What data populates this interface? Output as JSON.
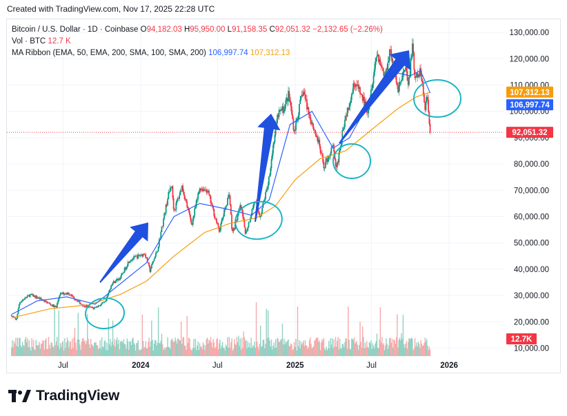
{
  "header": {
    "created_text": "Created with TradingView.com, Nov 17, 2025 22:28 UTC"
  },
  "legend": {
    "symbol": "Bitcoin / U.S. Dollar · 1D · Coinbase",
    "open_label": "O",
    "open": "94,182.03",
    "high_label": "H",
    "high": "95,950.00",
    "low_label": "L",
    "low": "91,158.35",
    "close_label": "C",
    "close": "92,051.32",
    "change": "−2,132.65 (−2.26%)",
    "vol_label": "Vol · BTC",
    "vol_value": "12.7 K",
    "ma_label": "MA Ribbon (EMA, 50, EMA, 200, SMA, 100, SMA, 200)",
    "ma1_value": "106,997.74",
    "ma2_value": "107,312.13"
  },
  "brand": {
    "name": "TradingView"
  },
  "colors": {
    "up": "#089981",
    "down": "#f23645",
    "ma_fast": "#2962ff",
    "ma_slow": "#f59d0b",
    "annotation": "#1f50e0",
    "circle": "#19b4c4",
    "grid": "#f0f3fa"
  },
  "chart_data": {
    "type": "candlestick",
    "title": "Bitcoin / U.S. Dollar · 1D · Coinbase",
    "x_ticks": [
      "Jul",
      "2024",
      "Jul",
      "2025",
      "Jul",
      "2026"
    ],
    "y_ticks": [
      "10,000.00",
      "20,000.00",
      "30,000.00",
      "40,000.00",
      "50,000.00",
      "60,000.00",
      "70,000.00",
      "80,000.00",
      "90,000.00",
      "100,000.00",
      "110,000.00",
      "120,000.00",
      "130,000.00"
    ],
    "ylim": [
      7000,
      135000
    ],
    "xlim": [
      "2023-02-18",
      "2026-05-10"
    ],
    "grid": true,
    "last_price": {
      "value": 92051.32,
      "label": "92,051.32"
    },
    "ma_fast": {
      "name": "EMA 50",
      "value": 106997.74,
      "label": "106,997.74"
    },
    "ma_slow": {
      "name": "EMA 200",
      "value": 107312.13,
      "label": "107,312.13"
    },
    "volume_last": {
      "label": "12.7K"
    },
    "price_path": [
      [
        "2023-03-01",
        22500
      ],
      [
        "2023-03-12",
        20500
      ],
      [
        "2023-03-20",
        27500
      ],
      [
        "2023-04-14",
        30300
      ],
      [
        "2023-05-05",
        29000
      ],
      [
        "2023-06-15",
        25500
      ],
      [
        "2023-06-23",
        30500
      ],
      [
        "2023-07-13",
        31000
      ],
      [
        "2023-08-18",
        26200
      ],
      [
        "2023-09-11",
        25200
      ],
      [
        "2023-10-10",
        27500
      ],
      [
        "2023-10-24",
        34500
      ],
      [
        "2023-11-15",
        37000
      ],
      [
        "2023-12-05",
        43500
      ],
      [
        "2024-01-11",
        46000
      ],
      [
        "2024-01-23",
        39500
      ],
      [
        "2024-02-10",
        47500
      ],
      [
        "2024-03-05",
        67000
      ],
      [
        "2024-03-14",
        72500
      ],
      [
        "2024-03-20",
        62000
      ],
      [
        "2024-04-08",
        71500
      ],
      [
        "2024-05-01",
        57000
      ],
      [
        "2024-05-20",
        71000
      ],
      [
        "2024-06-07",
        70000
      ],
      [
        "2024-07-05",
        54500
      ],
      [
        "2024-07-29",
        69000
      ],
      [
        "2024-08-05",
        53500
      ],
      [
        "2024-08-25",
        64000
      ],
      [
        "2024-09-06",
        53500
      ],
      [
        "2024-09-27",
        66000
      ],
      [
        "2024-10-10",
        60000
      ],
      [
        "2024-10-29",
        72500
      ],
      [
        "2024-11-13",
        90500
      ],
      [
        "2024-11-22",
        99000
      ],
      [
        "2024-12-05",
        101000
      ],
      [
        "2024-12-17",
        106500
      ],
      [
        "2024-12-30",
        92500
      ],
      [
        "2025-01-20",
        108000
      ],
      [
        "2025-02-03",
        99000
      ],
      [
        "2025-02-25",
        88500
      ],
      [
        "2025-03-10",
        79000
      ],
      [
        "2025-04-02",
        87000
      ],
      [
        "2025-04-08",
        76500
      ],
      [
        "2025-04-25",
        94500
      ],
      [
        "2025-05-22",
        111500
      ],
      [
        "2025-06-22",
        100500
      ],
      [
        "2025-07-14",
        122500
      ],
      [
        "2025-08-02",
        113000
      ],
      [
        "2025-08-14",
        124000
      ],
      [
        "2025-09-01",
        108500
      ],
      [
        "2025-09-20",
        116000
      ],
      [
        "2025-09-26",
        109000
      ],
      [
        "2025-10-06",
        125500
      ],
      [
        "2025-10-11",
        112000
      ],
      [
        "2025-10-27",
        115000
      ],
      [
        "2025-11-04",
        101500
      ],
      [
        "2025-11-10",
        106000
      ],
      [
        "2025-11-17",
        92051
      ]
    ],
    "ma_fast_path": [
      [
        "2023-03-01",
        22800
      ],
      [
        "2023-05-01",
        28000
      ],
      [
        "2023-07-10",
        29500
      ],
      [
        "2023-09-15",
        26700
      ],
      [
        "2023-11-10",
        34000
      ],
      [
        "2024-01-15",
        42500
      ],
      [
        "2024-03-20",
        60000
      ],
      [
        "2024-05-20",
        65000
      ],
      [
        "2024-07-20",
        63000
      ],
      [
        "2024-09-20",
        60500
      ],
      [
        "2024-11-01",
        66500
      ],
      [
        "2024-12-20",
        95000
      ],
      [
        "2025-02-10",
        100000
      ],
      [
        "2025-04-01",
        86000
      ],
      [
        "2025-05-10",
        90000
      ],
      [
        "2025-07-01",
        105000
      ],
      [
        "2025-08-20",
        115000
      ],
      [
        "2025-10-01",
        113500
      ],
      [
        "2025-10-25",
        115500
      ],
      [
        "2025-11-17",
        106998
      ]
    ],
    "ma_slow_path": [
      [
        "2023-03-01",
        21500
      ],
      [
        "2023-06-01",
        25000
      ],
      [
        "2023-09-01",
        26500
      ],
      [
        "2023-11-15",
        30500
      ],
      [
        "2024-01-15",
        35500
      ],
      [
        "2024-03-20",
        45000
      ],
      [
        "2024-06-01",
        54000
      ],
      [
        "2024-08-01",
        57500
      ],
      [
        "2024-10-01",
        59500
      ],
      [
        "2024-11-15",
        64000
      ],
      [
        "2025-01-01",
        74000
      ],
      [
        "2025-03-01",
        82000
      ],
      [
        "2025-05-01",
        85000
      ],
      [
        "2025-07-01",
        93000
      ],
      [
        "2025-09-01",
        101000
      ],
      [
        "2025-10-15",
        105500
      ],
      [
        "2025-11-17",
        107312
      ]
    ]
  }
}
